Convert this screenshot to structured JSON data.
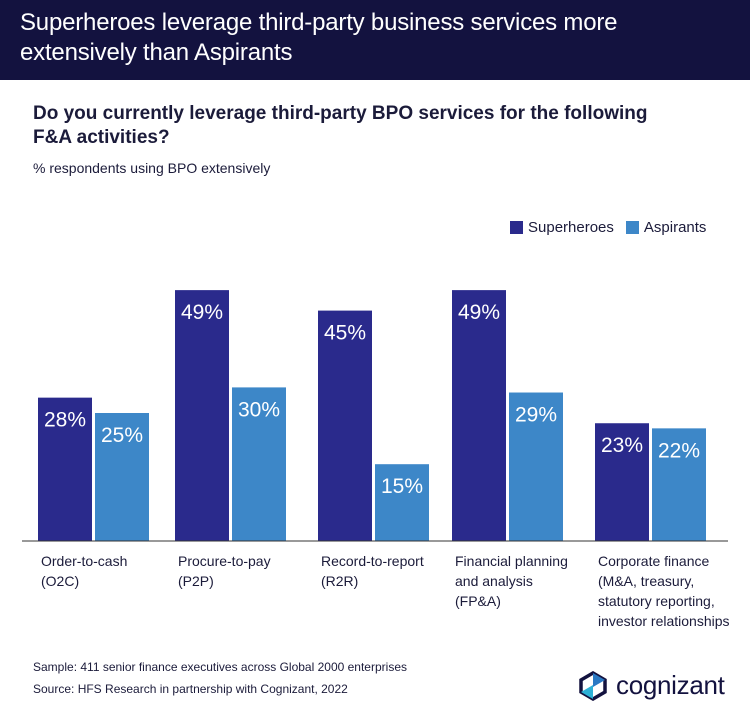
{
  "banner": {
    "title_line1": "Superheroes leverage third-party business services more",
    "title_line2": "extensively than Aspirants"
  },
  "question": {
    "line1": "Do you currently leverage third-party BPO services for the following",
    "line2": "F&A activities?"
  },
  "subtitle": "% respondents using BPO extensively",
  "footnotes": {
    "sample": "Sample: 411 senior finance executives across Global 2000 enterprises",
    "source": "Source: HFS Research in partnership with Cognizant, 2022"
  },
  "logo": {
    "text": "cognizant",
    "icon": "cognizant-logo-icon"
  },
  "colors": {
    "superheroes": "#2a2a8c",
    "aspirants": "#3d87c8",
    "banner": "#13123f",
    "baseline": "#333333"
  },
  "chart_data": {
    "type": "bar",
    "categories": [
      [
        "Order-to-cash",
        "(O2C)"
      ],
      [
        "Procure-to-pay",
        "(P2P)"
      ],
      [
        "Record-to-report",
        "(R2R)"
      ],
      [
        "Financial planning",
        "and analysis",
        "(FP&A)"
      ],
      [
        "Corporate finance",
        "(M&A, treasury,",
        "statutory reporting,",
        "investor relationships"
      ]
    ],
    "series": [
      {
        "name": "Superheroes",
        "values": [
          28,
          49,
          45,
          49,
          23
        ],
        "labels": [
          "28%",
          "49%",
          "45%",
          "49%",
          "23%"
        ]
      },
      {
        "name": "Aspirants",
        "values": [
          25,
          30,
          15,
          29,
          22
        ],
        "labels": [
          "25%",
          "30%",
          "15%",
          "29%",
          "22%"
        ]
      }
    ],
    "ylim": [
      0,
      55
    ],
    "legend_position": "top-right",
    "grid": false,
    "data_labels": "inside-top"
  }
}
